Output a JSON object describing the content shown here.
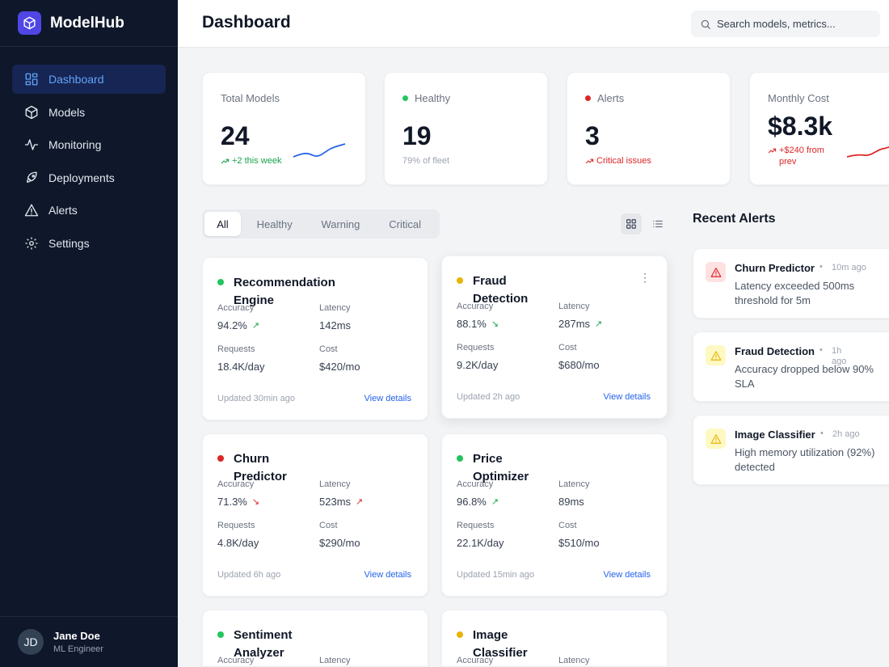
{
  "app": {
    "name": "ModelHub",
    "logo_icon": "cube-icon"
  },
  "sidebar": {
    "items": [
      {
        "label": "Dashboard",
        "icon": "grid-icon",
        "active": true
      },
      {
        "label": "Models",
        "icon": "cube-icon"
      },
      {
        "label": "Monitoring",
        "icon": "activity-icon"
      },
      {
        "label": "Deployments",
        "icon": "rocket-icon"
      },
      {
        "label": "Alerts",
        "icon": "warning-icon"
      },
      {
        "label": "Settings",
        "icon": "gear-icon"
      }
    ],
    "user": {
      "initials": "JD",
      "name": "Jane Doe",
      "role": "ML Engineer"
    }
  },
  "header": {
    "title": "Dashboard",
    "search_placeholder": "Search models, metrics..."
  },
  "stats": [
    {
      "label": "Total Models",
      "value": "24",
      "sub": "+2 this week",
      "sub_color": "#16a34a",
      "trend": "up",
      "spark_color": "#2563eb"
    },
    {
      "label": "Healthy",
      "value": "19",
      "sub": "79% of fleet",
      "dot_color": "#22c55e"
    },
    {
      "label": "Alerts",
      "value": "3",
      "sub": "Critical issues",
      "dot_color": "#dc2626",
      "sub_color": "#dc2626",
      "trend": "up"
    },
    {
      "label": "Monthly Cost",
      "value": "$8.3k",
      "sub": "+$240 from prev",
      "sub_color": "#dc2626",
      "trend": "up",
      "spark_color": "#dc2626"
    }
  ],
  "filters": {
    "tabs": [
      "All",
      "Healthy",
      "Warning",
      "Critical"
    ],
    "active": "All"
  },
  "view_toggle": {
    "grid_icon": "grid-icon",
    "list_icon": "list-icon",
    "active": "grid"
  },
  "metric_labels": {
    "accuracy": "Accuracy",
    "latency": "Latency",
    "requests": "Requests",
    "cost": "Cost"
  },
  "details_label": "View details",
  "models": [
    {
      "name": "Recommendation Engine",
      "status_color": "#22c55e",
      "accuracy": "94.2%",
      "accuracy_trend": "up",
      "latency": "142ms",
      "requests": "18.4K/day",
      "cost": "$420/mo",
      "updated": "Updated 30min ago"
    },
    {
      "name": "Fraud Detection",
      "status_color": "#eab308",
      "accuracy": "88.1%",
      "accuracy_trend": "down",
      "latency": "287ms",
      "latency_trend": "up",
      "requests": "9.2K/day",
      "cost": "$680/mo",
      "updated": "Updated 2h ago",
      "menu_icon": "kebab-icon"
    },
    {
      "name": "Churn Predictor",
      "status_color": "#dc2626",
      "accuracy": "71.3%",
      "accuracy_trend": "down-bad",
      "latency": "523ms",
      "latency_trend": "up-bad",
      "requests": "4.8K/day",
      "cost": "$290/mo",
      "updated": "Updated 6h ago"
    },
    {
      "name": "Price Optimizer",
      "status_color": "#22c55e",
      "accuracy": "96.8%",
      "accuracy_trend": "up",
      "latency": "89ms",
      "requests": "22.1K/day",
      "cost": "$510/mo",
      "updated": "Updated 15min ago"
    },
    {
      "name": "Sentiment Analyzer",
      "status_color": "#22c55e"
    },
    {
      "name": "Image Classifier",
      "status_color": "#eab308"
    }
  ],
  "recent_alerts": {
    "title": "Recent Alerts",
    "items": [
      {
        "model": "Churn Predictor",
        "time": "10m ago",
        "message": "Latency exceeded 500ms threshold for 5m",
        "severity": "critical",
        "icon": "warning-icon"
      },
      {
        "model": "Fraud Detection",
        "time": "1h ago",
        "message": "Accuracy dropped below 90% SLA",
        "severity": "warning",
        "icon": "warning-icon"
      },
      {
        "model": "Image Classifier",
        "time": "2h ago",
        "message": "High memory utilization (92%) detected",
        "severity": "warning",
        "icon": "warning-icon"
      }
    ]
  }
}
